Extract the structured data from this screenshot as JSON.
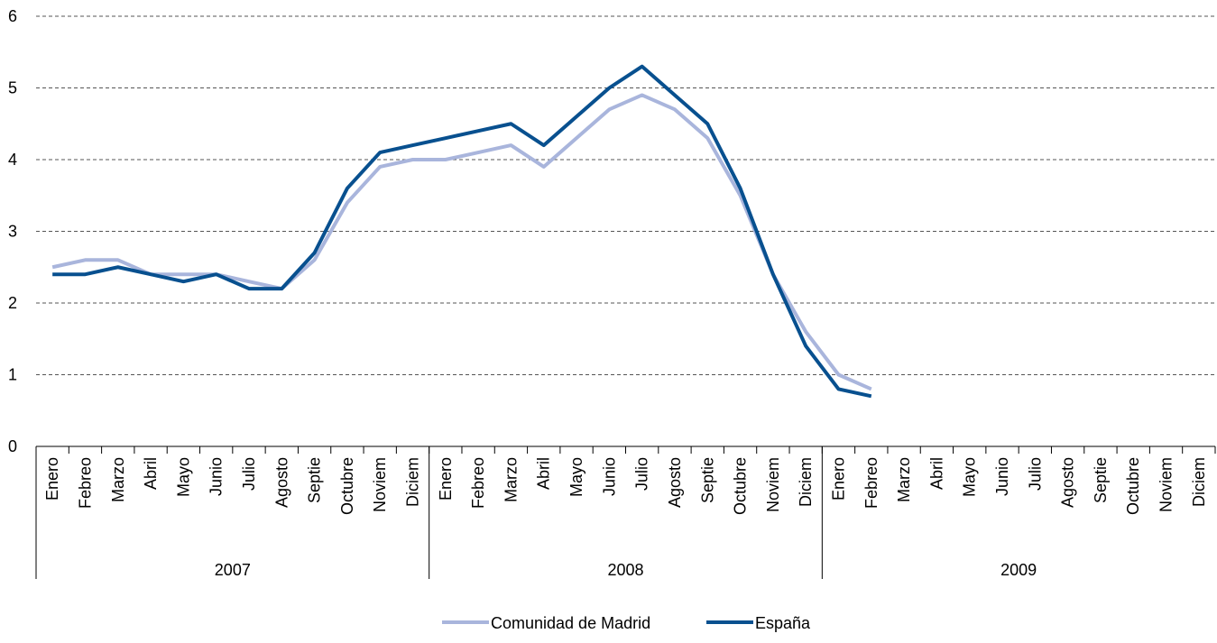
{
  "chart_data": {
    "type": "line",
    "categories": [
      "Enero",
      "Febreo",
      "Marzo",
      "Abril",
      "Mayo",
      "Junio",
      "Julio",
      "Agosto",
      "Septie",
      "Octubre",
      "Noviem",
      "Diciem",
      "Enero",
      "Febreo",
      "Marzo",
      "Abril",
      "Mayo",
      "Junio",
      "Julio",
      "Agosto",
      "Septie",
      "Octubre",
      "Noviem",
      "Diciem",
      "Enero",
      "Febreo",
      "Marzo",
      "Abril",
      "Mayo",
      "Junio",
      "Julio",
      "Agosto",
      "Septie",
      "Octubre",
      "Noviem",
      "Diciem"
    ],
    "groups": [
      "2007",
      "2008",
      "2009"
    ],
    "series": [
      {
        "name": "Comunidad de Madrid",
        "color": "#a9b5dc",
        "values": [
          2.5,
          2.6,
          2.6,
          2.4,
          2.4,
          2.4,
          2.3,
          2.2,
          2.6,
          3.4,
          3.9,
          4.0,
          4.0,
          4.1,
          4.2,
          3.9,
          4.3,
          4.7,
          4.9,
          4.7,
          4.3,
          3.5,
          2.4,
          1.6,
          1.0,
          0.8,
          null,
          null,
          null,
          null,
          null,
          null,
          null,
          null,
          null,
          null
        ]
      },
      {
        "name": "España",
        "color": "#08508f",
        "values": [
          2.4,
          2.4,
          2.5,
          2.4,
          2.3,
          2.4,
          2.2,
          2.2,
          2.7,
          3.6,
          4.1,
          4.2,
          4.3,
          4.4,
          4.5,
          4.2,
          4.6,
          5.0,
          5.3,
          4.9,
          4.5,
          3.6,
          2.4,
          1.4,
          0.8,
          0.7,
          null,
          null,
          null,
          null,
          null,
          null,
          null,
          null,
          null,
          null
        ]
      }
    ],
    "ylim": [
      0,
      6
    ],
    "yticks": [
      0,
      1,
      2,
      3,
      4,
      5,
      6
    ],
    "grid": true,
    "legend": "bottom"
  }
}
